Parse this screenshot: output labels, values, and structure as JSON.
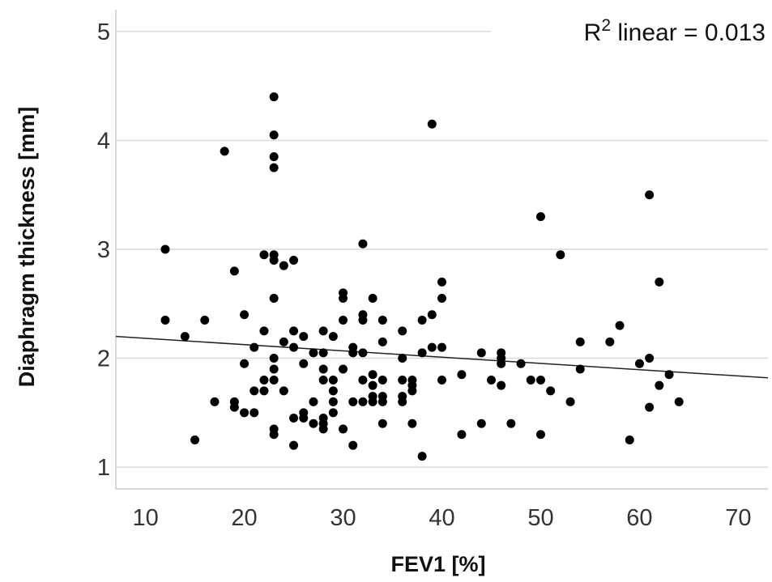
{
  "chart_data": {
    "type": "scatter",
    "title": "",
    "xlabel": "FEV1 [%]",
    "ylabel": "Diaphragm thickness [mm]",
    "xlim": [
      7,
      73
    ],
    "ylim": [
      0.8,
      5.2
    ],
    "xticks": [
      10,
      20,
      30,
      40,
      50,
      60,
      70
    ],
    "yticks": [
      1,
      2,
      3,
      4,
      5
    ],
    "grid": "horizontal",
    "annotation": {
      "base": "R",
      "sup": "2",
      "rest": " linear = 0.013"
    },
    "fit_line": {
      "x": [
        7,
        73
      ],
      "y": [
        2.2,
        1.82
      ]
    },
    "points": [
      [
        12,
        3.0
      ],
      [
        12,
        2.35
      ],
      [
        14,
        2.2
      ],
      [
        15,
        1.25
      ],
      [
        16,
        2.35
      ],
      [
        17,
        1.6
      ],
      [
        18,
        3.9
      ],
      [
        19,
        2.8
      ],
      [
        19,
        1.6
      ],
      [
        19,
        1.55
      ],
      [
        20,
        2.4
      ],
      [
        20,
        1.95
      ],
      [
        20,
        1.5
      ],
      [
        21,
        2.1
      ],
      [
        21,
        1.7
      ],
      [
        21,
        1.5
      ],
      [
        22,
        2.95
      ],
      [
        22,
        2.25
      ],
      [
        22,
        1.8
      ],
      [
        22,
        1.7
      ],
      [
        23,
        4.4
      ],
      [
        23,
        4.05
      ],
      [
        23,
        3.85
      ],
      [
        23,
        3.75
      ],
      [
        23,
        2.95
      ],
      [
        23,
        2.9
      ],
      [
        23,
        2.55
      ],
      [
        23,
        2.0
      ],
      [
        23,
        1.9
      ],
      [
        23,
        1.8
      ],
      [
        23,
        1.35
      ],
      [
        23,
        1.3
      ],
      [
        24,
        2.85
      ],
      [
        24,
        2.15
      ],
      [
        24,
        1.7
      ],
      [
        25,
        2.9
      ],
      [
        25,
        2.25
      ],
      [
        25,
        2.1
      ],
      [
        25,
        1.45
      ],
      [
        25,
        1.2
      ],
      [
        26,
        2.2
      ],
      [
        26,
        1.95
      ],
      [
        26,
        1.5
      ],
      [
        26,
        1.45
      ],
      [
        27,
        2.05
      ],
      [
        27,
        1.6
      ],
      [
        27,
        1.4
      ],
      [
        28,
        2.25
      ],
      [
        28,
        2.05
      ],
      [
        28,
        1.9
      ],
      [
        28,
        1.8
      ],
      [
        28,
        1.45
      ],
      [
        28,
        1.4
      ],
      [
        28,
        1.35
      ],
      [
        29,
        2.2
      ],
      [
        29,
        1.8
      ],
      [
        29,
        1.7
      ],
      [
        29,
        1.6
      ],
      [
        29,
        1.5
      ],
      [
        30,
        2.6
      ],
      [
        30,
        2.55
      ],
      [
        30,
        2.35
      ],
      [
        30,
        1.9
      ],
      [
        30,
        1.35
      ],
      [
        31,
        2.1
      ],
      [
        31,
        2.05
      ],
      [
        31,
        1.6
      ],
      [
        31,
        1.2
      ],
      [
        32,
        3.05
      ],
      [
        32,
        2.4
      ],
      [
        32,
        2.35
      ],
      [
        32,
        2.05
      ],
      [
        32,
        1.8
      ],
      [
        32,
        1.6
      ],
      [
        33,
        2.55
      ],
      [
        33,
        1.85
      ],
      [
        33,
        1.75
      ],
      [
        33,
        1.65
      ],
      [
        33,
        1.6
      ],
      [
        34,
        2.35
      ],
      [
        34,
        2.15
      ],
      [
        34,
        1.8
      ],
      [
        34,
        1.65
      ],
      [
        34,
        1.6
      ],
      [
        34,
        1.4
      ],
      [
        36,
        2.25
      ],
      [
        36,
        2.0
      ],
      [
        36,
        1.8
      ],
      [
        36,
        1.65
      ],
      [
        36,
        1.6
      ],
      [
        37,
        1.8
      ],
      [
        37,
        1.75
      ],
      [
        37,
        1.7
      ],
      [
        37,
        1.4
      ],
      [
        38,
        2.35
      ],
      [
        38,
        2.05
      ],
      [
        38,
        1.1
      ],
      [
        39,
        4.15
      ],
      [
        39,
        2.4
      ],
      [
        39,
        2.1
      ],
      [
        40,
        2.7
      ],
      [
        40,
        2.55
      ],
      [
        40,
        2.1
      ],
      [
        40,
        1.8
      ],
      [
        42,
        1.85
      ],
      [
        42,
        1.3
      ],
      [
        44,
        2.05
      ],
      [
        44,
        1.4
      ],
      [
        45,
        1.8
      ],
      [
        46,
        2.05
      ],
      [
        46,
        2.0
      ],
      [
        46,
        1.95
      ],
      [
        46,
        1.75
      ],
      [
        47,
        1.4
      ],
      [
        48,
        1.95
      ],
      [
        49,
        1.8
      ],
      [
        50,
        3.3
      ],
      [
        50,
        1.8
      ],
      [
        50,
        1.3
      ],
      [
        51,
        1.7
      ],
      [
        52,
        2.95
      ],
      [
        53,
        1.6
      ],
      [
        54,
        2.15
      ],
      [
        54,
        1.9
      ],
      [
        57,
        2.15
      ],
      [
        58,
        2.3
      ],
      [
        59,
        1.25
      ],
      [
        60,
        1.95
      ],
      [
        61,
        3.5
      ],
      [
        61,
        2.0
      ],
      [
        61,
        1.55
      ],
      [
        62,
        2.7
      ],
      [
        62,
        1.75
      ],
      [
        63,
        1.85
      ],
      [
        64,
        1.6
      ]
    ]
  }
}
